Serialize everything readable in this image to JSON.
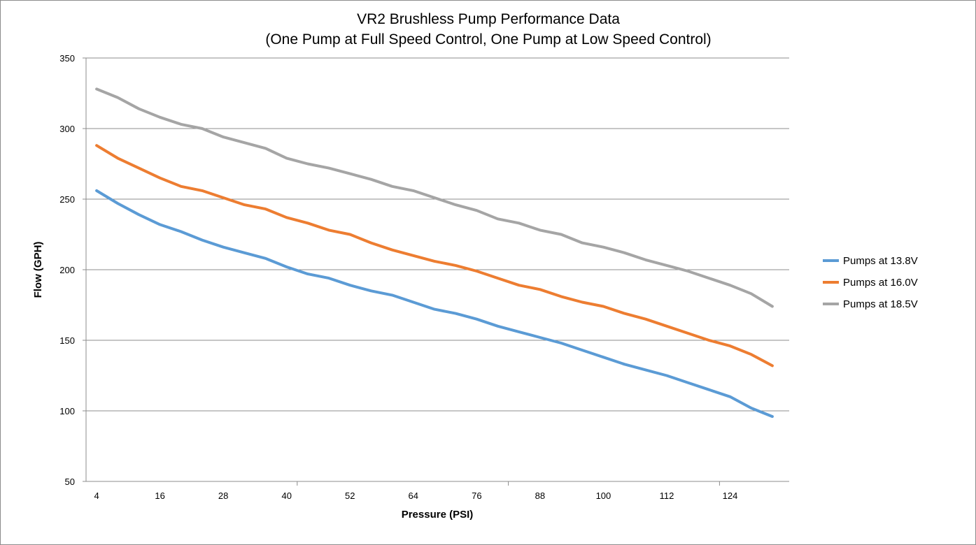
{
  "chart_data": {
    "type": "line",
    "title": "VR2 Brushless Pump Performance Data",
    "subtitle": "(One Pump at Full Speed Control, One Pump at Low Speed Control)",
    "xlabel": "Pressure (PSI)",
    "ylabel": "Flow (GPH)",
    "ylim": [
      50,
      350
    ],
    "yticks": [
      50,
      100,
      150,
      200,
      250,
      300,
      350
    ],
    "xticks": [
      4,
      16,
      28,
      40,
      52,
      64,
      76,
      88,
      100,
      112,
      124
    ],
    "x": [
      4,
      8,
      12,
      16,
      20,
      24,
      28,
      32,
      36,
      40,
      44,
      48,
      52,
      56,
      60,
      64,
      68,
      72,
      76,
      80,
      84,
      88,
      92,
      96,
      100,
      104,
      108,
      112,
      116,
      120,
      124,
      128,
      132
    ],
    "grid": "horizontal",
    "legend_position": "right",
    "series": [
      {
        "name": "Pumps at 13.8V",
        "color": "#5b9bd5",
        "values": [
          256,
          247,
          239,
          232,
          227,
          221,
          216,
          212,
          208,
          202,
          197,
          194,
          189,
          185,
          182,
          177,
          172,
          169,
          165,
          160,
          156,
          152,
          148,
          143,
          138,
          133,
          129,
          125,
          120,
          115,
          110,
          102,
          96
        ]
      },
      {
        "name": "Pumps at 16.0V",
        "color": "#ed7d31",
        "values": [
          288,
          279,
          272,
          265,
          259,
          256,
          251,
          246,
          243,
          237,
          233,
          228,
          225,
          219,
          214,
          210,
          206,
          203,
          199,
          194,
          189,
          186,
          181,
          177,
          174,
          169,
          165,
          160,
          155,
          150,
          146,
          140,
          132
        ]
      },
      {
        "name": "Pumps at 18.5V",
        "color": "#a5a5a5",
        "values": [
          328,
          322,
          314,
          308,
          303,
          300,
          294,
          290,
          286,
          279,
          275,
          272,
          268,
          264,
          259,
          256,
          251,
          246,
          242,
          236,
          233,
          228,
          225,
          219,
          216,
          212,
          207,
          203,
          199,
          194,
          189,
          183,
          174
        ]
      }
    ]
  }
}
